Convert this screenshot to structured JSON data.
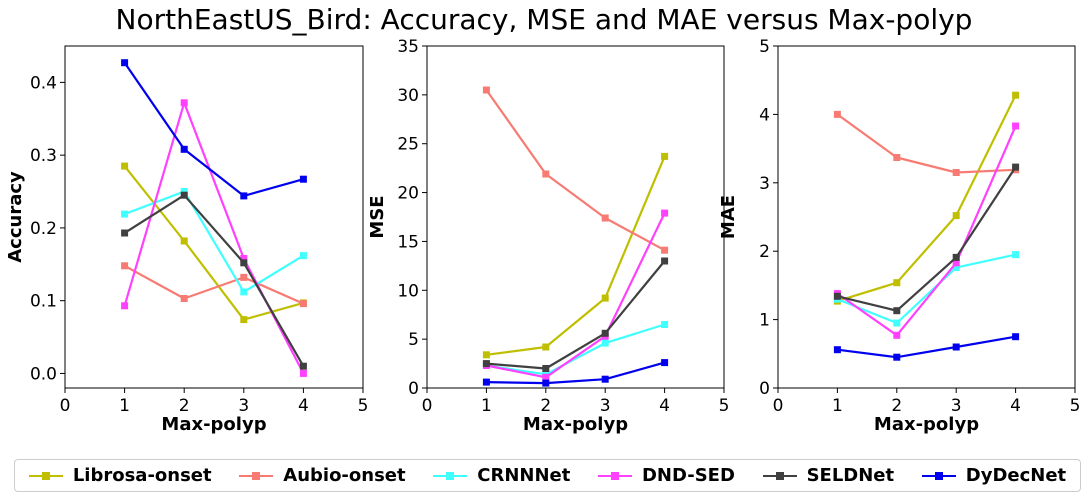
{
  "title": "NorthEastUS_Bird: Accuracy, MSE and MAE versus Max-polyp",
  "series_style": [
    {
      "name": "Librosa-onset",
      "color": "#bfbf00"
    },
    {
      "name": "Aubio-onset",
      "color": "#f77b72"
    },
    {
      "name": "CRNNNet",
      "color": "#40ffff"
    },
    {
      "name": "DND-SED",
      "color": "#ff40ff"
    },
    {
      "name": "SELDNet",
      "color": "#404040"
    },
    {
      "name": "DyDecNet",
      "color": "#0000ee"
    }
  ],
  "chart_data": [
    {
      "type": "line",
      "xlabel": "Max-polyp",
      "ylabel": "Accuracy",
      "xlim": [
        0,
        5
      ],
      "ylim": [
        -0.02,
        0.45
      ],
      "xticks": [
        0,
        1,
        2,
        3,
        4,
        5
      ],
      "yticks": [
        0.0,
        0.1,
        0.2,
        0.3,
        0.4
      ],
      "ytick_labels": [
        "0.0",
        "0.1",
        "0.2",
        "0.3",
        "0.4"
      ],
      "x": [
        1,
        2,
        3,
        4
      ],
      "grid": false,
      "series": [
        {
          "name": "Librosa-onset",
          "values": [
            0.285,
            0.182,
            0.074,
            0.097
          ]
        },
        {
          "name": "Aubio-onset",
          "values": [
            0.148,
            0.103,
            0.132,
            0.096
          ]
        },
        {
          "name": "CRNNNet",
          "values": [
            0.219,
            0.25,
            0.112,
            0.162
          ]
        },
        {
          "name": "DND-SED",
          "values": [
            0.093,
            0.372,
            0.158,
            0.0
          ]
        },
        {
          "name": "SELDNet",
          "values": [
            0.193,
            0.245,
            0.152,
            0.01
          ]
        },
        {
          "name": "DyDecNet",
          "values": [
            0.427,
            0.308,
            0.244,
            0.267
          ]
        }
      ]
    },
    {
      "type": "line",
      "xlabel": "Max-polyp",
      "ylabel": "MSE",
      "xlim": [
        0,
        5
      ],
      "ylim": [
        0,
        35
      ],
      "xticks": [
        0,
        1,
        2,
        3,
        4,
        5
      ],
      "yticks": [
        0,
        5,
        10,
        15,
        20,
        25,
        30,
        35
      ],
      "ytick_labels": [
        "0",
        "5",
        "10",
        "15",
        "20",
        "25",
        "30",
        "35"
      ],
      "x": [
        1,
        2,
        3,
        4
      ],
      "grid": false,
      "series": [
        {
          "name": "Librosa-onset",
          "values": [
            3.4,
            4.2,
            9.2,
            23.7
          ]
        },
        {
          "name": "Aubio-onset",
          "values": [
            30.5,
            21.9,
            17.4,
            14.1
          ]
        },
        {
          "name": "CRNNNet",
          "values": [
            2.3,
            1.4,
            4.6,
            6.5
          ]
        },
        {
          "name": "DND-SED",
          "values": [
            2.3,
            1.1,
            5.3,
            17.9
          ]
        },
        {
          "name": "SELDNet",
          "values": [
            2.5,
            2.0,
            5.6,
            13.0
          ]
        },
        {
          "name": "DyDecNet",
          "values": [
            0.6,
            0.5,
            0.9,
            2.6
          ]
        }
      ]
    },
    {
      "type": "line",
      "xlabel": "Max-polyp",
      "ylabel": "MAE",
      "xlim": [
        0,
        5
      ],
      "ylim": [
        0,
        5
      ],
      "xticks": [
        0,
        1,
        2,
        3,
        4,
        5
      ],
      "yticks": [
        0,
        1,
        2,
        3,
        4,
        5
      ],
      "ytick_labels": [
        "0",
        "1",
        "2",
        "3",
        "4",
        "5"
      ],
      "x": [
        1,
        2,
        3,
        4
      ],
      "grid": false,
      "series": [
        {
          "name": "Librosa-onset",
          "values": [
            1.27,
            1.54,
            2.52,
            4.28
          ]
        },
        {
          "name": "Aubio-onset",
          "values": [
            4.0,
            3.37,
            3.15,
            3.19
          ]
        },
        {
          "name": "CRNNNet",
          "values": [
            1.3,
            0.95,
            1.76,
            1.95
          ]
        },
        {
          "name": "DND-SED",
          "values": [
            1.38,
            0.77,
            1.83,
            3.83
          ]
        },
        {
          "name": "SELDNet",
          "values": [
            1.34,
            1.13,
            1.91,
            3.23
          ]
        },
        {
          "name": "DyDecNet",
          "values": [
            0.56,
            0.45,
            0.6,
            0.75
          ]
        }
      ]
    }
  ]
}
